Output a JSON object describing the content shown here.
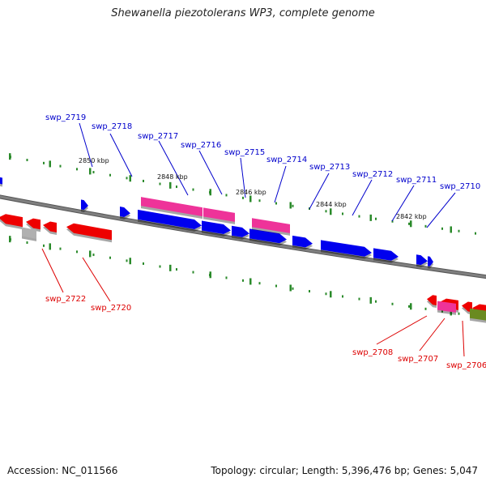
{
  "header": {
    "title": "Shewanella piezotolerans WP3, complete genome"
  },
  "footer": {
    "accession": "Accession: NC_011566",
    "summary": "Topology: circular; Length: 5,396,476 bp; Genes: 5,047"
  },
  "colors": {
    "forward_gene": "#0000ee",
    "forward_rna": "#ee3399",
    "reverse_gene": "#ee0000",
    "reverse_rna": "#ee3399",
    "olive_gene": "#6a8a20",
    "grey_gene": "#b0b0b0",
    "backbone": "#808080",
    "tick": "#2a8a2a",
    "label_forward": "#0000cc",
    "label_reverse": "#dd0000"
  },
  "scale": {
    "kbp_labels": [
      "2850 kbp",
      "2848 kbp",
      "2846 kbp",
      "2844 kbp",
      "2842 kbp"
    ]
  },
  "genes": {
    "forward_labels": [
      "swp_2719",
      "swp_2718",
      "swp_2717",
      "swp_2716",
      "swp_2715",
      "swp_2714",
      "swp_2713",
      "swp_2712",
      "swp_2711",
      "swp_2710"
    ],
    "reverse_labels": [
      "swp_2722",
      "swp_2720",
      "swp_2708",
      "swp_2707",
      "swp_2706"
    ]
  }
}
